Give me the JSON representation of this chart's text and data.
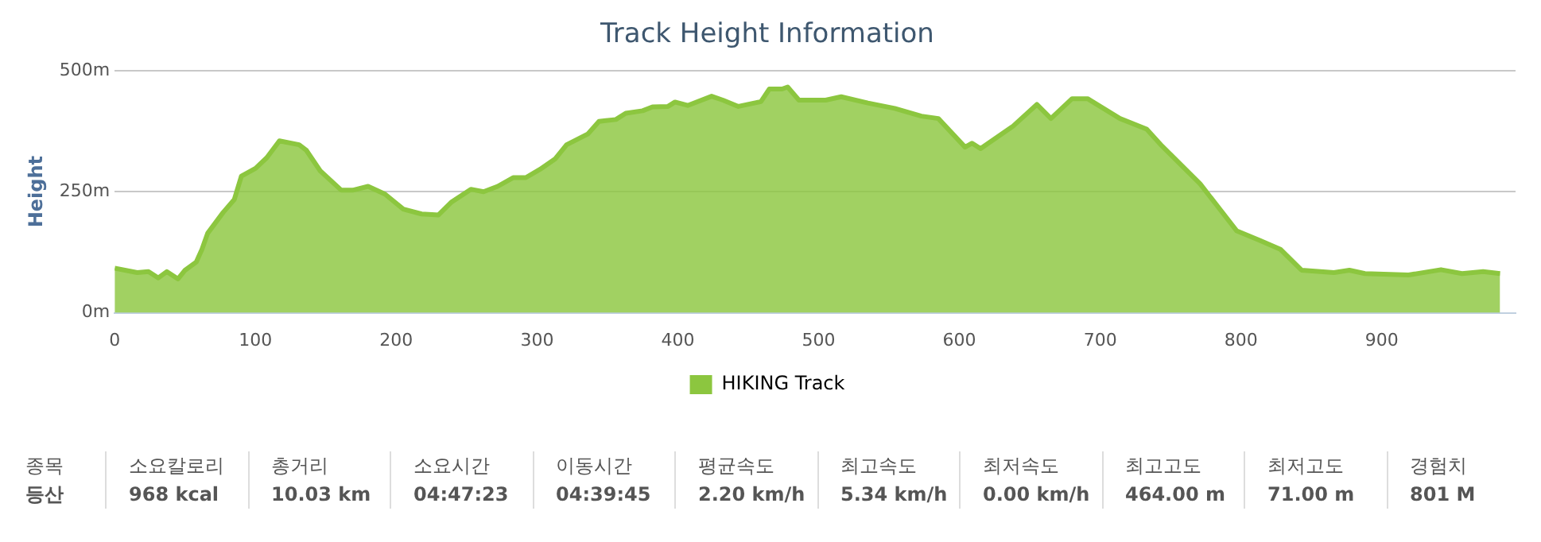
{
  "chart_data": {
    "type": "area",
    "title": "Track Height Information",
    "ylabel": "Height",
    "x": [
      0,
      16,
      24,
      31,
      37,
      45,
      50,
      58,
      62,
      66,
      77,
      85,
      90,
      100,
      108,
      117,
      131,
      136,
      146,
      161,
      169,
      180,
      192,
      205,
      218,
      230,
      239,
      253,
      262,
      272,
      283,
      292,
      302,
      313,
      321,
      336,
      344,
      356,
      363,
      375,
      382,
      393,
      398,
      407,
      424,
      432,
      443,
      459,
      465,
      474,
      478,
      486,
      505,
      516,
      535,
      554,
      573,
      585,
      604,
      609,
      615,
      638,
      655,
      665,
      680,
      691,
      714,
      733,
      744,
      771,
      797,
      813,
      828,
      843,
      866,
      877,
      888,
      919,
      942,
      957,
      972,
      984
    ],
    "series": [
      {
        "name": "HIKING Track",
        "color": "#8cc63f",
        "values": [
          92,
          83,
          85,
          72,
          85,
          70,
          88,
          105,
          131,
          164,
          207,
          234,
          282,
          298,
          320,
          355,
          347,
          336,
          293,
          253,
          253,
          261,
          245,
          214,
          204,
          202,
          228,
          255,
          250,
          261,
          279,
          279,
          296,
          318,
          347,
          369,
          395,
          399,
          412,
          417,
          425,
          426,
          435,
          428,
          447,
          439,
          426,
          436,
          462,
          462,
          466,
          439,
          439,
          446,
          433,
          422,
          406,
          401,
          342,
          350,
          339,
          385,
          430,
          401,
          442,
          442,
          401,
          379,
          344,
          266,
          169,
          150,
          131,
          88,
          83,
          88,
          81,
          78,
          89,
          81,
          85,
          81
        ]
      }
    ],
    "xlim": [
      0,
      995
    ],
    "xticks": [
      0,
      100,
      200,
      300,
      400,
      500,
      600,
      700,
      800,
      900
    ],
    "ylim": [
      0,
      500
    ],
    "yticks": [
      {
        "value": 0,
        "label": "0m"
      },
      {
        "value": 250,
        "label": "250m"
      },
      {
        "value": 500,
        "label": "500m"
      }
    ],
    "grid": "y",
    "legend": "bottom",
    "marker": "none",
    "annotations": [
      "종목",
      "등산",
      "소요칼로리",
      "968 kcal",
      "총거리",
      "10.03 km",
      "소요시간",
      "04:47:23",
      "이동시간",
      "04:39:45",
      "평균속도",
      "2.20 km/h",
      "최고속도",
      "5.34 km/h",
      "최저속도",
      "0.00 km/h",
      "최고고도",
      "464.00 m",
      "최저고도",
      "71.00 m",
      "경험치",
      "801 M"
    ]
  }
}
